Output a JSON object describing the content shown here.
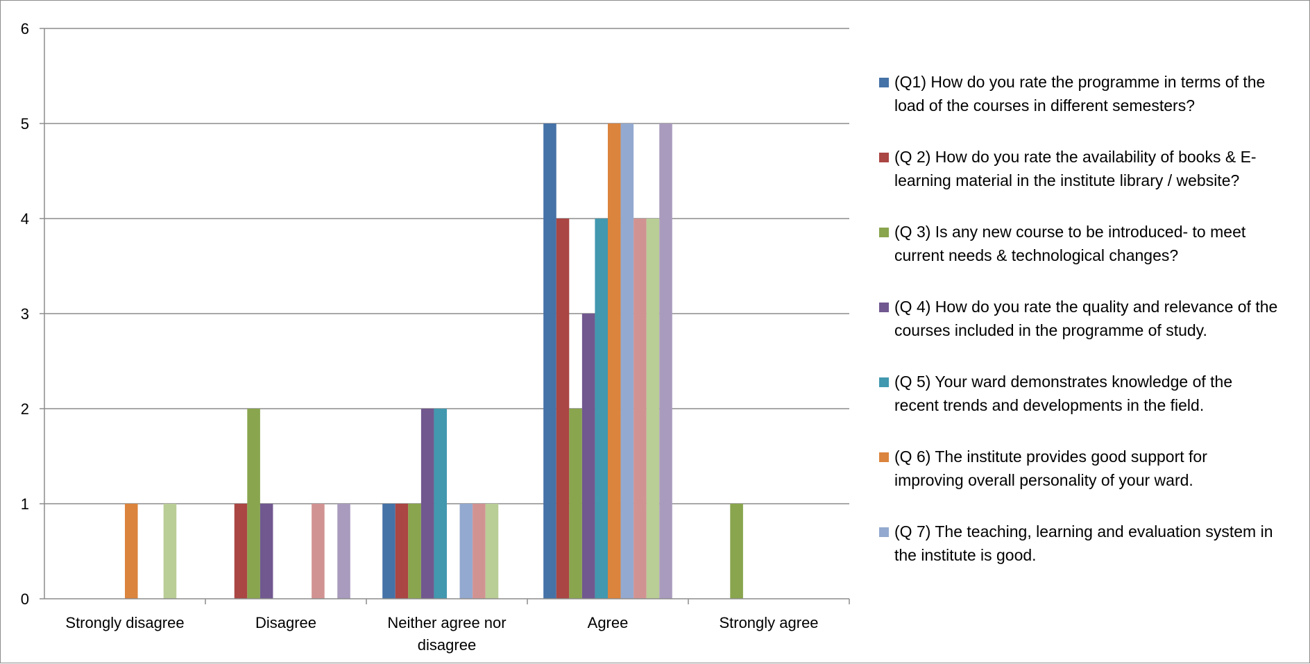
{
  "chart_data": {
    "type": "bar",
    "title": "",
    "xlabel": "",
    "ylabel": "",
    "ylim": [
      0,
      6
    ],
    "yticks": [
      "0",
      "1",
      "2",
      "3",
      "4",
      "5",
      "6"
    ],
    "grid": true,
    "legend_position": "right",
    "categories": [
      "Strongly disagree",
      "Disagree",
      "Neither agree nor disagree",
      "Agree",
      "Strongly agree"
    ],
    "category_lines": [
      [
        "Strongly disagree"
      ],
      [
        "Disagree"
      ],
      [
        "Neither agree nor",
        "disagree"
      ],
      [
        "Agree"
      ],
      [
        "Strongly agree"
      ]
    ],
    "series": [
      {
        "name": "(Q1) How do you rate the programme in terms of the load of the courses in different semesters?",
        "color": "#4572A7",
        "values": [
          0,
          0,
          1,
          5,
          0
        ]
      },
      {
        "name": "(Q 2) How do you rate the availability of books & E-learning material in the institute library / website?",
        "color": "#AA4643",
        "values": [
          0,
          1,
          1,
          4,
          0
        ]
      },
      {
        "name": "(Q 3) Is any new course to be introduced- to meet current needs & technological changes?",
        "color": "#89A54E",
        "values": [
          0,
          2,
          1,
          2,
          1
        ]
      },
      {
        "name": "(Q 4) How do you rate the quality and relevance of the courses included in the programme of study.",
        "color": "#71588F",
        "values": [
          0,
          1,
          2,
          3,
          0
        ]
      },
      {
        "name": "(Q 5) Your ward demonstrates knowledge of the recent trends and developments in the field.",
        "color": "#4198AF",
        "values": [
          0,
          0,
          2,
          4,
          0
        ]
      },
      {
        "name": "(Q 6) The institute provides good support for improving overall personality of your ward.",
        "color": "#DB843D",
        "values": [
          1,
          0,
          0,
          5,
          0
        ]
      },
      {
        "name": "(Q 7) The teaching, learning and evaluation system in the institute is good.",
        "color": "#93A9CF",
        "values": [
          0,
          0,
          1,
          5,
          0
        ]
      },
      {
        "name": "",
        "color": "#D19392",
        "values": [
          0,
          1,
          1,
          4,
          0
        ]
      },
      {
        "name": "",
        "color": "#B9CD96",
        "values": [
          1,
          0,
          1,
          4,
          0
        ]
      },
      {
        "name": "",
        "color": "#A99BBD",
        "values": [
          0,
          1,
          0,
          5,
          0
        ]
      }
    ]
  },
  "legend": [
    {
      "line1": "(Q1) How do you rate the programme in terms of the",
      "line2": "load of the courses in different semesters?",
      "color": "#4572A7"
    },
    {
      "line1": "(Q 2) How do you rate the availability of books & E-",
      "line2": "learning material in the institute library / website?",
      "color": "#AA4643"
    },
    {
      "line1": "(Q 3) Is any new course to be introduced- to meet",
      "line2": "current needs & technological changes?",
      "color": "#89A54E"
    },
    {
      "line1": "(Q 4) How do you rate the quality and relevance of the",
      "line2": "courses included in the programme of study.",
      "color": "#71588F"
    },
    {
      "line1": "(Q 5) Your ward demonstrates knowledge of the",
      "line2": "recent trends and developments in the field.",
      "color": "#4198AF"
    },
    {
      "line1": "(Q 6) The institute provides good support for",
      "line2": "improving overall personality of your ward.",
      "color": "#DB843D"
    },
    {
      "line1": "(Q 7) The teaching, learning and evaluation system in",
      "line2": "the institute is good.",
      "color": "#93A9CF"
    }
  ]
}
